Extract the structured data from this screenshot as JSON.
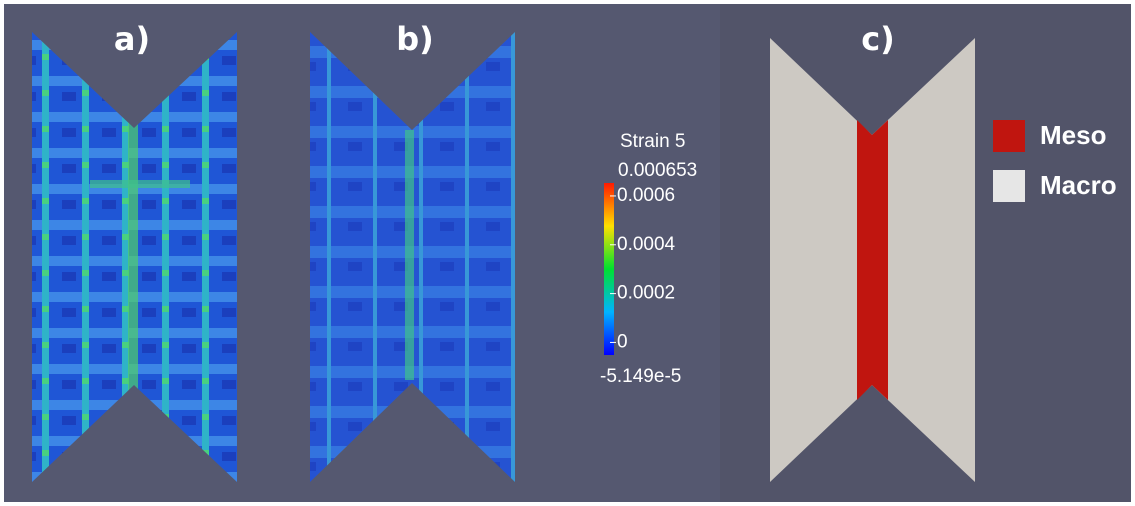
{
  "panels": [
    {
      "label": "a)"
    },
    {
      "label": "b)"
    },
    {
      "label": "c)"
    }
  ],
  "colorbar": {
    "title": "Strain 5",
    "range": [
      {
        "value": -5.149e-05,
        "label": "-5.149e-5"
      },
      0.000653
    ],
    "ticks": [
      0,
      0.0002,
      0.0004,
      0.0006
    ]
  },
  "legend": [
    {
      "label": "Meso",
      "color": "#c0150f"
    },
    {
      "label": "Macro",
      "color": "#e6e6e6"
    }
  ]
}
